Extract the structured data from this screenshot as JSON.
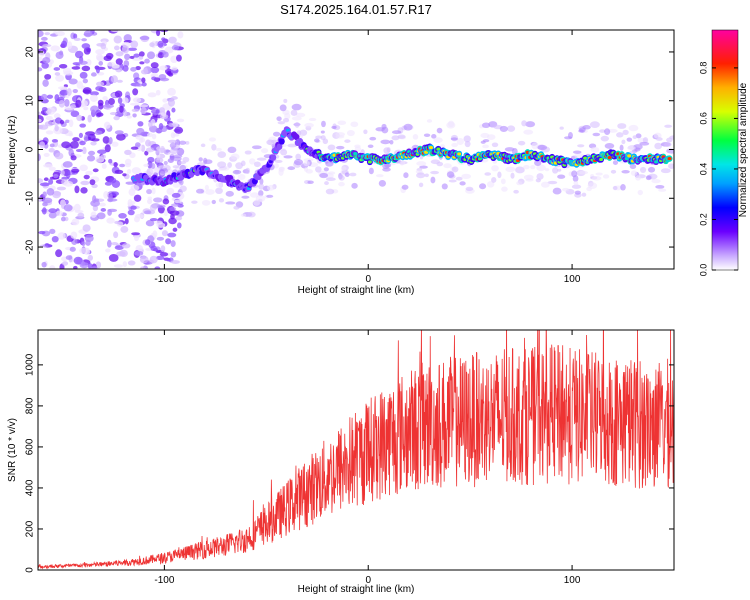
{
  "title": "S174.2025.164.01.57.R17",
  "chart_data": [
    {
      "type": "heatmap",
      "xlabel": "Height of straight line (km)",
      "ylabel": "Frequency (Hz)",
      "xlim": [
        -162,
        150
      ],
      "ylim": [
        -24.5,
        24.5
      ],
      "xticks": [
        -100,
        0,
        100
      ],
      "yticks": [
        -20,
        -10,
        0,
        10,
        20
      ],
      "grid": false,
      "colorbar": {
        "label": "Normalized spectral amplitude",
        "range": [
          0.0,
          0.95
        ],
        "ticks": [
          "0.0",
          "0.2",
          "0.4",
          "0.6",
          "0.8"
        ]
      },
      "ridge": {
        "x": [
          -110,
          -100,
          -90,
          -80,
          -70,
          -60,
          -50,
          -40,
          -30,
          -20,
          -10,
          0,
          10,
          20,
          30,
          40,
          50,
          60,
          70,
          80,
          90,
          100,
          110,
          120,
          130,
          140,
          148
        ],
        "y": [
          -6,
          -6.5,
          -5,
          -4,
          -6,
          -8,
          -4,
          4,
          0,
          -2,
          -1,
          -2,
          -2,
          -1,
          0,
          -1,
          -2,
          -1,
          -2,
          -1,
          -2,
          -3,
          -2,
          -1,
          -2,
          -2,
          -2
        ]
      }
    },
    {
      "type": "line",
      "xlabel": "Height of straight line (km)",
      "ylabel": "SNR (10 * v/v)",
      "xlim": [
        -162,
        150
      ],
      "ylim": [
        0,
        1170
      ],
      "xticks": [
        -100,
        0,
        100
      ],
      "yticks": [
        0,
        200,
        400,
        600,
        800,
        1000
      ],
      "grid": false,
      "series": [
        {
          "color": "#ee3333",
          "x": [
            -162,
            -150,
            -140,
            -130,
            -120,
            -110,
            -100,
            -90,
            -80,
            -70,
            -60,
            -50,
            -40,
            -30,
            -20,
            -10,
            0,
            10,
            20,
            30,
            40,
            50,
            60,
            70,
            80,
            90,
            100,
            110,
            120,
            130,
            140,
            150
          ],
          "y": [
            15,
            20,
            22,
            28,
            35,
            45,
            60,
            80,
            100,
            120,
            150,
            220,
            300,
            380,
            450,
            520,
            580,
            640,
            680,
            710,
            720,
            730,
            740,
            750,
            750,
            760,
            750,
            740,
            730,
            720,
            700,
            720
          ]
        }
      ]
    }
  ]
}
